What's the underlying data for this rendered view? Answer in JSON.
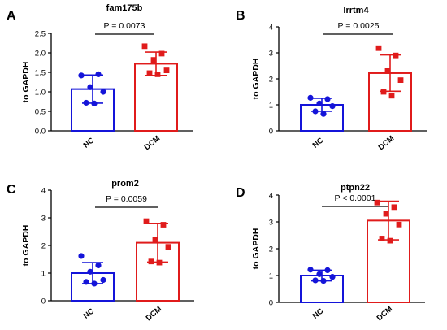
{
  "chart_data": [
    {
      "type": "bar",
      "panel": "A",
      "title": "fam175b",
      "ylabel": "to GAPDH",
      "categories": [
        "NC",
        "DCM"
      ],
      "ylim": [
        0,
        2.5
      ],
      "yticks": [
        "0.0",
        "0.5",
        "1.0",
        "1.5",
        "2.0",
        "2.5"
      ],
      "significance": "P = 0.0073",
      "series": [
        {
          "category": "NC",
          "mean": 1.07,
          "sd": 0.36,
          "points": [
            1.42,
            1.45,
            1.12,
            1.0,
            0.72,
            0.7
          ],
          "color": "#1414d9"
        },
        {
          "category": "DCM",
          "mean": 1.72,
          "sd": 0.3,
          "points": [
            2.17,
            1.98,
            1.82,
            1.55,
            1.48,
            1.45
          ],
          "color": "#e01b1b"
        }
      ]
    },
    {
      "type": "bar",
      "panel": "B",
      "title": "lrrtm4",
      "ylabel": "to GAPDH",
      "categories": [
        "NC",
        "DCM"
      ],
      "ylim": [
        0,
        4
      ],
      "yticks": [
        "0",
        "1",
        "2",
        "3",
        "4"
      ],
      "significance": "P = 0.0025",
      "series": [
        {
          "category": "NC",
          "mean": 1.0,
          "sd": 0.25,
          "points": [
            1.27,
            1.22,
            1.05,
            0.95,
            0.75,
            0.65
          ],
          "color": "#1414d9"
        },
        {
          "category": "DCM",
          "mean": 2.22,
          "sd": 0.7,
          "points": [
            3.18,
            2.9,
            2.3,
            1.95,
            1.5,
            1.35
          ],
          "color": "#e01b1b"
        }
      ]
    },
    {
      "type": "bar",
      "panel": "C",
      "title": "prom2",
      "ylabel": "to GAPDH",
      "categories": [
        "NC",
        "DCM"
      ],
      "ylim": [
        0,
        4
      ],
      "yticks": [
        "0",
        "1",
        "2",
        "3",
        "4"
      ],
      "significance": "P = 0.0059",
      "series": [
        {
          "category": "NC",
          "mean": 1.0,
          "sd": 0.38,
          "points": [
            1.62,
            1.28,
            1.05,
            0.75,
            0.68,
            0.62
          ],
          "color": "#1414d9"
        },
        {
          "category": "DCM",
          "mean": 2.1,
          "sd": 0.7,
          "points": [
            2.88,
            2.75,
            2.22,
            1.95,
            1.42,
            1.38
          ],
          "color": "#e01b1b"
        }
      ]
    },
    {
      "type": "bar",
      "panel": "D",
      "title": "ptpn22",
      "ylabel": "to GAPDH",
      "categories": [
        "NC",
        "DCM"
      ],
      "ylim": [
        0,
        4
      ],
      "yticks": [
        "0",
        "1",
        "2",
        "3",
        "4"
      ],
      "significance": "P < 0.0001",
      "series": [
        {
          "category": "NC",
          "mean": 1.0,
          "sd": 0.2,
          "points": [
            1.22,
            1.2,
            1.05,
            0.95,
            0.82,
            0.8
          ],
          "color": "#1414d9"
        },
        {
          "category": "DCM",
          "mean": 3.05,
          "sd": 0.72,
          "points": [
            3.72,
            3.55,
            3.3,
            2.9,
            2.38,
            2.3
          ],
          "color": "#e01b1b"
        }
      ]
    }
  ]
}
